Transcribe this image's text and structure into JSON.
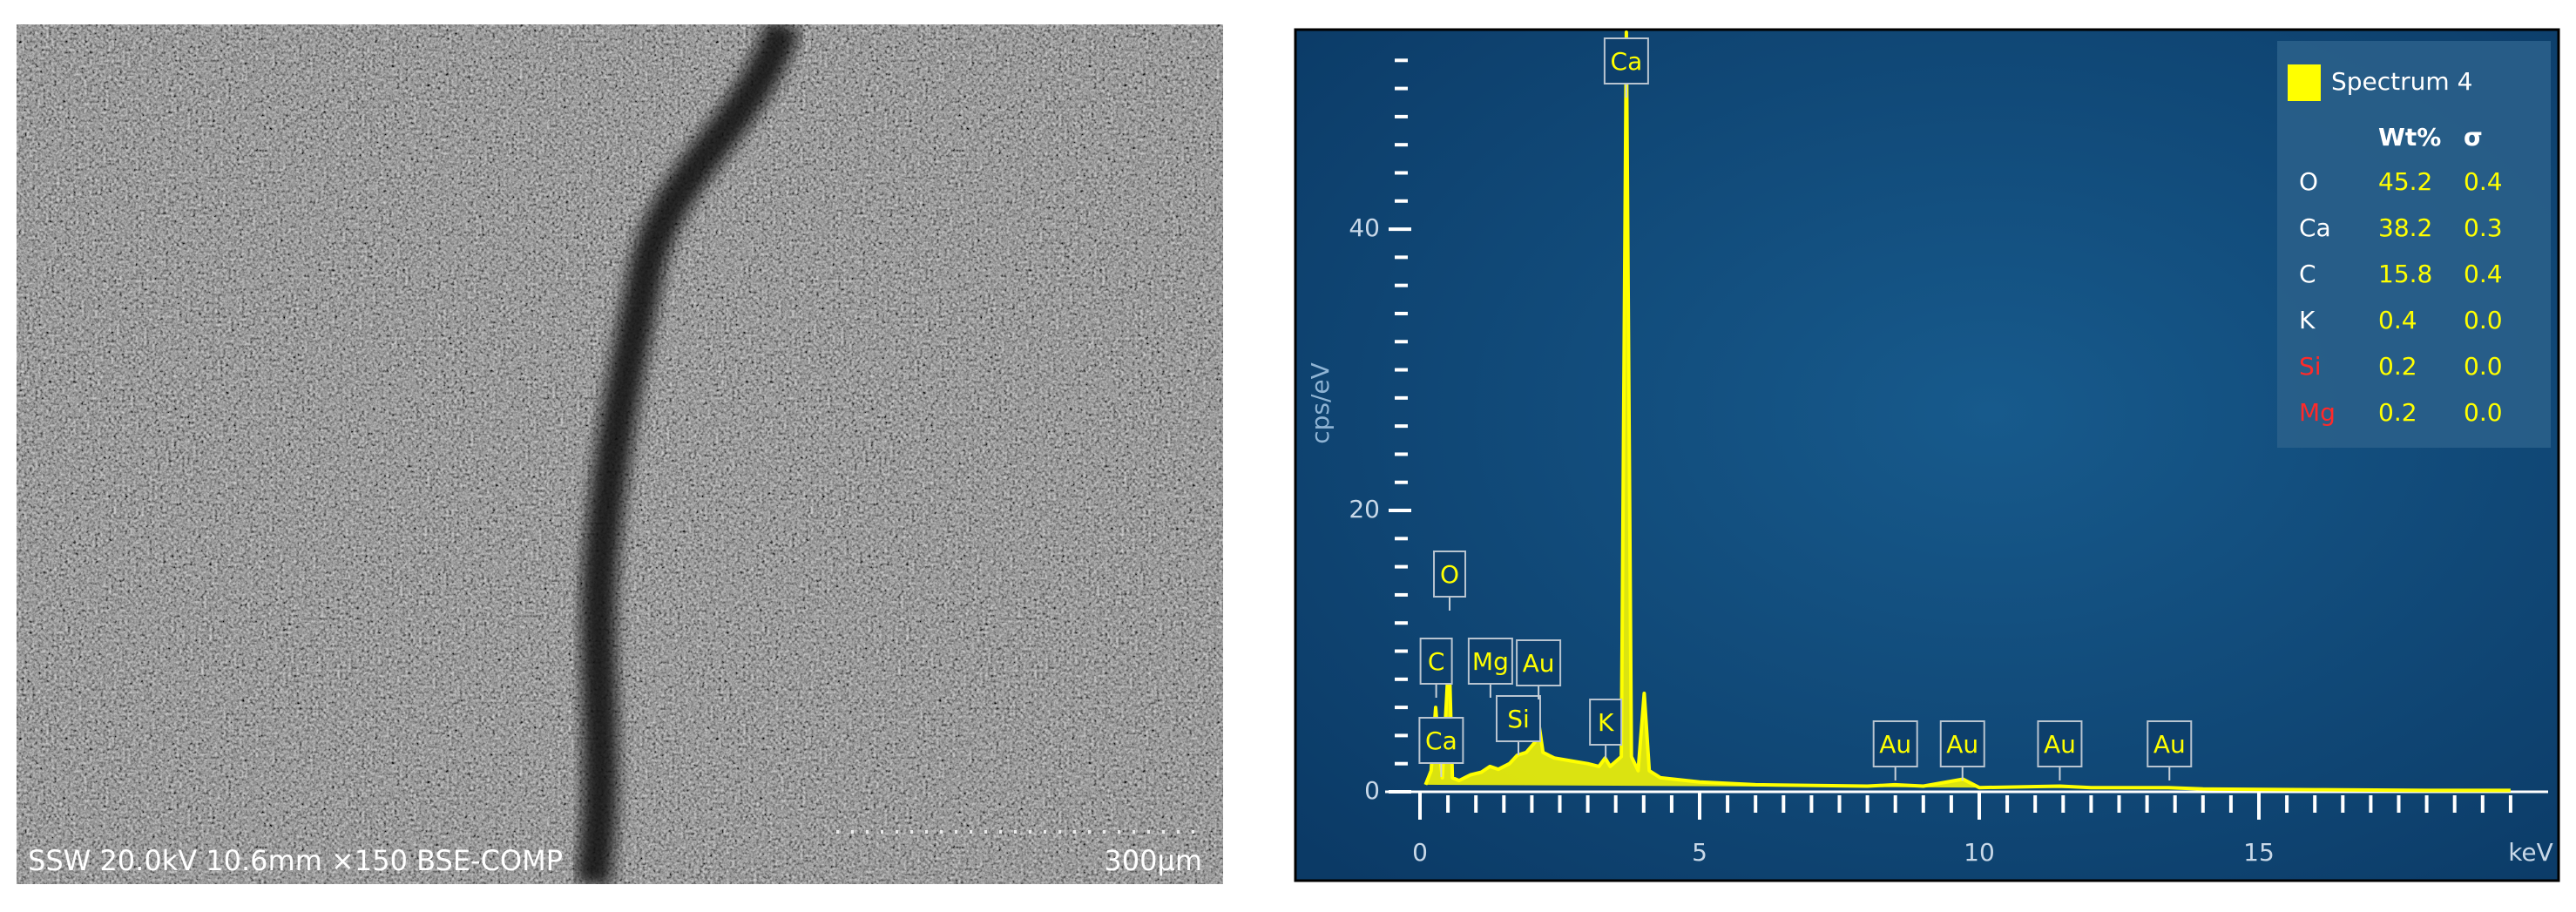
{
  "sem_image": {
    "caption": "SSW 20.0kV 10.6mm ×150 BSE-COMP",
    "scale_bar": "300µm"
  },
  "chart_data": {
    "type": "line",
    "y_label": "cps/eV",
    "x_unit_label": "keV",
    "x": [
      0.1,
      0.2,
      0.28,
      0.34,
      0.4,
      0.52,
      0.58,
      0.7,
      0.9,
      1.1,
      1.25,
      1.4,
      1.6,
      1.74,
      1.9,
      2.05,
      2.12,
      2.2,
      2.4,
      2.7,
      3.0,
      3.2,
      3.31,
      3.4,
      3.6,
      3.69,
      3.78,
      3.9,
      4.01,
      4.1,
      4.3,
      5,
      6,
      8,
      8.49,
      9,
      9.71,
      10,
      11.44,
      12,
      13.38,
      14,
      16,
      18,
      19.5
    ],
    "series": [
      {
        "name": "Spectrum 4",
        "color": "#ffff00",
        "values": [
          0.5,
          1.5,
          6,
          3,
          1,
          10,
          1,
          0.8,
          1.2,
          1.4,
          1.8,
          1.6,
          2.0,
          2.6,
          2.8,
          3.5,
          5,
          2.8,
          2.4,
          2.2,
          2,
          1.8,
          2.4,
          1.8,
          2.5,
          54,
          2.5,
          1.5,
          7,
          1.5,
          1.0,
          0.7,
          0.5,
          0.4,
          0.5,
          0.4,
          0.9,
          0.3,
          0.4,
          0.3,
          0.3,
          0.2,
          0.15,
          0.1,
          0.1
        ]
      }
    ],
    "xlim": [
      0,
      20
    ],
    "ylim": [
      0,
      54
    ],
    "xticks": [
      0,
      5,
      10,
      15
    ],
    "yticks": [
      0,
      20,
      40
    ],
    "xminorticks": [
      0.5,
      1,
      1.5,
      2,
      2.5,
      3,
      3.5,
      4,
      4.5,
      5.5,
      6,
      6.5,
      7,
      7.5,
      8,
      8.5,
      9,
      9.5,
      10.5,
      11,
      11.5,
      12,
      12.5,
      13,
      13.5,
      14,
      14.5,
      15.5,
      16,
      16.5,
      17,
      17.5,
      18,
      18.5,
      19,
      19.5
    ],
    "yminorticks": [
      2,
      4,
      6,
      8,
      10,
      12,
      14,
      16,
      18,
      22,
      24,
      26,
      28,
      30,
      32,
      34,
      36,
      38,
      42,
      44,
      46,
      48,
      50,
      52
    ],
    "peak_labels": [
      {
        "label": "Ca",
        "x": 3.69
      },
      {
        "label": "O",
        "x": 0.53
      },
      {
        "label": "C",
        "x": 0.29
      },
      {
        "label": "Ca",
        "x": 0.38
      },
      {
        "label": "Mg",
        "x": 1.26
      },
      {
        "label": "Si",
        "x": 1.76
      },
      {
        "label": "Au",
        "x": 2.12
      },
      {
        "label": "K",
        "x": 3.32
      },
      {
        "label": "Au",
        "x": 8.5
      },
      {
        "label": "Au",
        "x": 9.7
      },
      {
        "label": "Au",
        "x": 11.44
      },
      {
        "label": "Au",
        "x": 13.4
      }
    ],
    "results_table": {
      "columns": [
        "Wt%",
        "σ"
      ],
      "rows": [
        {
          "element": "O",
          "color": "#ffffff",
          "values": [
            "45.2",
            "0.4"
          ]
        },
        {
          "element": "Ca",
          "color": "#ffffff",
          "values": [
            "38.2",
            "0.3"
          ]
        },
        {
          "element": "C",
          "color": "#ffffff",
          "values": [
            "15.8",
            "0.4"
          ]
        },
        {
          "element": "K",
          "color": "#ffffff",
          "values": [
            "0.4",
            "0.0"
          ]
        },
        {
          "element": "Si",
          "color": "#ff2a2a",
          "values": [
            "0.2",
            "0.0"
          ]
        },
        {
          "element": "Mg",
          "color": "#ff2a2a",
          "values": [
            "0.2",
            "0.0"
          ]
        }
      ]
    }
  }
}
